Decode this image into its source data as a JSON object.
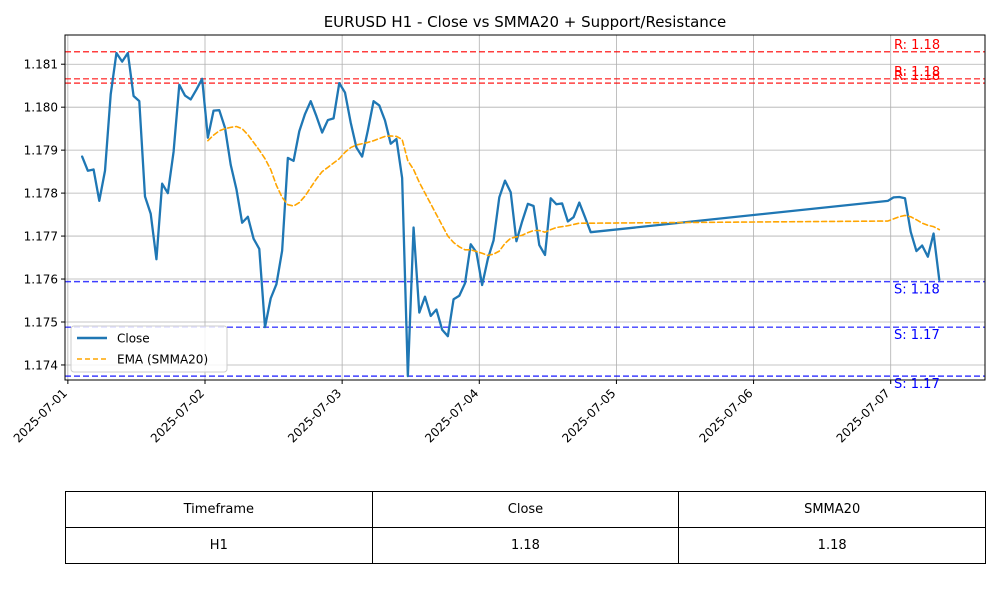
{
  "chart_data": {
    "type": "line",
    "title": "EURUSD H1 - Close vs SMMA20 + Support/Resistance",
    "xlabel": "",
    "ylabel": "",
    "x_ticks": [
      "2025-07-01",
      "2025-07-02",
      "2025-07-03",
      "2025-07-04",
      "2025-07-05",
      "2025-07-06",
      "2025-07-07"
    ],
    "x_range": [
      "2025-06-30T23:30",
      "2025-07-07T16:30"
    ],
    "y_ticks": [
      1.174,
      1.175,
      1.176,
      1.177,
      1.178,
      1.179,
      1.18,
      1.181
    ],
    "ylim": [
      1.17365,
      1.18168
    ],
    "grid": true,
    "legend": {
      "position": "lower-left",
      "entries": [
        "Close",
        "EMA (SMMA20)"
      ]
    },
    "series": [
      {
        "name": "Close",
        "color": "#1f77b4",
        "style": "solid",
        "points": [
          [
            "2025-07-01T02:30",
            1.17885
          ],
          [
            "2025-07-01T03:30",
            1.17852
          ],
          [
            "2025-07-01T04:30",
            1.17855
          ],
          [
            "2025-07-01T05:30",
            1.17782
          ],
          [
            "2025-07-01T06:30",
            1.17852
          ],
          [
            "2025-07-01T07:30",
            1.1803
          ],
          [
            "2025-07-01T08:30",
            1.18126
          ],
          [
            "2025-07-01T09:30",
            1.18106
          ],
          [
            "2025-07-01T10:30",
            1.18126
          ],
          [
            "2025-07-01T11:30",
            1.18026
          ],
          [
            "2025-07-01T12:30",
            1.18014
          ],
          [
            "2025-07-01T13:30",
            1.17792
          ],
          [
            "2025-07-01T14:30",
            1.17752
          ],
          [
            "2025-07-01T15:30",
            1.17646
          ],
          [
            "2025-07-01T16:30",
            1.17822
          ],
          [
            "2025-07-01T17:30",
            1.178
          ],
          [
            "2025-07-01T18:30",
            1.17896
          ],
          [
            "2025-07-01T19:30",
            1.18052
          ],
          [
            "2025-07-01T20:30",
            1.18027
          ],
          [
            "2025-07-01T21:30",
            1.18018
          ],
          [
            "2025-07-01T22:30",
            1.18041
          ],
          [
            "2025-07-01T23:30",
            1.18066
          ],
          [
            "2025-07-02T00:30",
            1.17929
          ],
          [
            "2025-07-02T01:30",
            1.17992
          ],
          [
            "2025-07-02T02:30",
            1.17993
          ],
          [
            "2025-07-02T03:30",
            1.17952
          ],
          [
            "2025-07-02T04:30",
            1.17866
          ],
          [
            "2025-07-02T05:30",
            1.17809
          ],
          [
            "2025-07-02T06:30",
            1.17731
          ],
          [
            "2025-07-02T07:30",
            1.17745
          ],
          [
            "2025-07-02T08:30",
            1.17694
          ],
          [
            "2025-07-02T09:30",
            1.1767
          ],
          [
            "2025-07-02T10:30",
            1.17488
          ],
          [
            "2025-07-02T11:30",
            1.17555
          ],
          [
            "2025-07-02T12:30",
            1.17588
          ],
          [
            "2025-07-02T13:30",
            1.17666
          ],
          [
            "2025-07-02T14:30",
            1.17882
          ],
          [
            "2025-07-02T15:30",
            1.17875
          ],
          [
            "2025-07-02T16:30",
            1.17944
          ],
          [
            "2025-07-02T17:30",
            1.17984
          ],
          [
            "2025-07-02T18:30",
            1.18014
          ],
          [
            "2025-07-02T19:30",
            1.17979
          ],
          [
            "2025-07-02T20:30",
            1.17941
          ],
          [
            "2025-07-02T21:30",
            1.1797
          ],
          [
            "2025-07-02T22:30",
            1.17974
          ],
          [
            "2025-07-02T23:30",
            1.18056
          ],
          [
            "2025-07-03T00:30",
            1.18034
          ],
          [
            "2025-07-03T01:30",
            1.17964
          ],
          [
            "2025-07-03T02:30",
            1.17906
          ],
          [
            "2025-07-03T03:30",
            1.17885
          ],
          [
            "2025-07-03T04:30",
            1.17946
          ],
          [
            "2025-07-03T05:30",
            1.18014
          ],
          [
            "2025-07-03T06:30",
            1.18004
          ],
          [
            "2025-07-03T07:30",
            1.17969
          ],
          [
            "2025-07-03T08:30",
            1.17915
          ],
          [
            "2025-07-03T09:30",
            1.17926
          ],
          [
            "2025-07-03T10:30",
            1.17835
          ],
          [
            "2025-07-03T11:30",
            1.17374
          ],
          [
            "2025-07-03T12:30",
            1.1772
          ],
          [
            "2025-07-03T13:30",
            1.17522
          ],
          [
            "2025-07-03T14:30",
            1.17559
          ],
          [
            "2025-07-03T15:30",
            1.17514
          ],
          [
            "2025-07-03T16:30",
            1.17529
          ],
          [
            "2025-07-03T17:30",
            1.17482
          ],
          [
            "2025-07-03T18:30",
            1.17467
          ],
          [
            "2025-07-03T19:30",
            1.17553
          ],
          [
            "2025-07-03T20:30",
            1.17561
          ],
          [
            "2025-07-03T21:30",
            1.1759
          ],
          [
            "2025-07-03T22:30",
            1.17681
          ],
          [
            "2025-07-03T23:30",
            1.17662
          ],
          [
            "2025-07-04T00:30",
            1.17586
          ],
          [
            "2025-07-04T01:30",
            1.17647
          ],
          [
            "2025-07-04T02:30",
            1.1769
          ],
          [
            "2025-07-04T03:30",
            1.1779
          ],
          [
            "2025-07-04T04:30",
            1.17829
          ],
          [
            "2025-07-04T05:30",
            1.17802
          ],
          [
            "2025-07-04T06:30",
            1.17688
          ],
          [
            "2025-07-04T07:30",
            1.17734
          ],
          [
            "2025-07-04T08:30",
            1.17775
          ],
          [
            "2025-07-04T09:30",
            1.1777
          ],
          [
            "2025-07-04T10:30",
            1.17679
          ],
          [
            "2025-07-04T11:30",
            1.17656
          ],
          [
            "2025-07-04T12:30",
            1.17788
          ],
          [
            "2025-07-04T13:30",
            1.17774
          ],
          [
            "2025-07-04T14:30",
            1.17776
          ],
          [
            "2025-07-04T15:30",
            1.17734
          ],
          [
            "2025-07-04T16:30",
            1.17744
          ],
          [
            "2025-07-04T17:30",
            1.17778
          ],
          [
            "2025-07-04T18:30",
            1.17744
          ],
          [
            "2025-07-04T19:30",
            1.17709
          ],
          [
            "2025-07-06T23:30",
            1.17782
          ],
          [
            "2025-07-07T00:30",
            1.1779
          ],
          [
            "2025-07-07T01:30",
            1.17791
          ],
          [
            "2025-07-07T02:30",
            1.17788
          ],
          [
            "2025-07-07T03:30",
            1.1771
          ],
          [
            "2025-07-07T04:30",
            1.17665
          ],
          [
            "2025-07-07T05:30",
            1.17678
          ],
          [
            "2025-07-07T06:30",
            1.17652
          ],
          [
            "2025-07-07T07:30",
            1.17706
          ],
          [
            "2025-07-07T08:30",
            1.17598
          ]
        ]
      },
      {
        "name": "EMA (SMMA20)",
        "color": "#ffa500",
        "style": "dashed",
        "points": [
          [
            "2025-07-02T00:30",
            1.17922
          ],
          [
            "2025-07-02T01:30",
            1.17935
          ],
          [
            "2025-07-02T02:30",
            1.17945
          ],
          [
            "2025-07-02T03:30",
            1.1795
          ],
          [
            "2025-07-02T04:30",
            1.17953
          ],
          [
            "2025-07-02T05:30",
            1.17955
          ],
          [
            "2025-07-02T06:30",
            1.1795
          ],
          [
            "2025-07-02T07:30",
            1.17936
          ],
          [
            "2025-07-02T08:30",
            1.17918
          ],
          [
            "2025-07-02T09:30",
            1.179
          ],
          [
            "2025-07-02T10:30",
            1.1788
          ],
          [
            "2025-07-02T11:30",
            1.17855
          ],
          [
            "2025-07-02T12:30",
            1.17818
          ],
          [
            "2025-07-02T13:30",
            1.1779
          ],
          [
            "2025-07-02T14:30",
            1.17773
          ],
          [
            "2025-07-02T15:30",
            1.1777
          ],
          [
            "2025-07-02T16:30",
            1.17778
          ],
          [
            "2025-07-02T17:30",
            1.17793
          ],
          [
            "2025-07-02T18:30",
            1.17813
          ],
          [
            "2025-07-02T19:30",
            1.17833
          ],
          [
            "2025-07-02T20:30",
            1.1785
          ],
          [
            "2025-07-02T21:30",
            1.1786
          ],
          [
            "2025-07-02T22:30",
            1.1787
          ],
          [
            "2025-07-02T23:30",
            1.1788
          ],
          [
            "2025-07-03T00:30",
            1.17895
          ],
          [
            "2025-07-03T01:30",
            1.17906
          ],
          [
            "2025-07-03T02:30",
            1.17912
          ],
          [
            "2025-07-03T03:30",
            1.17915
          ],
          [
            "2025-07-03T04:30",
            1.17918
          ],
          [
            "2025-07-03T05:30",
            1.17922
          ],
          [
            "2025-07-03T06:30",
            1.17927
          ],
          [
            "2025-07-03T07:30",
            1.17932
          ],
          [
            "2025-07-03T08:30",
            1.17933
          ],
          [
            "2025-07-03T09:30",
            1.17932
          ],
          [
            "2025-07-03T10:30",
            1.17925
          ],
          [
            "2025-07-03T11:30",
            1.17875
          ],
          [
            "2025-07-03T12:30",
            1.17855
          ],
          [
            "2025-07-03T13:30",
            1.17825
          ],
          [
            "2025-07-03T14:30",
            1.178
          ],
          [
            "2025-07-03T15:30",
            1.17775
          ],
          [
            "2025-07-03T16:30",
            1.1775
          ],
          [
            "2025-07-03T17:30",
            1.17725
          ],
          [
            "2025-07-03T18:30",
            1.177
          ],
          [
            "2025-07-03T19:30",
            1.17685
          ],
          [
            "2025-07-03T20:30",
            1.17675
          ],
          [
            "2025-07-03T21:30",
            1.17668
          ],
          [
            "2025-07-03T22:30",
            1.17668
          ],
          [
            "2025-07-03T23:30",
            1.17664
          ],
          [
            "2025-07-04T00:30",
            1.1766
          ],
          [
            "2025-07-04T01:30",
            1.17655
          ],
          [
            "2025-07-04T02:30",
            1.17658
          ],
          [
            "2025-07-04T03:30",
            1.17665
          ],
          [
            "2025-07-04T04:30",
            1.17683
          ],
          [
            "2025-07-04T05:30",
            1.17695
          ],
          [
            "2025-07-04T06:30",
            1.17698
          ],
          [
            "2025-07-04T07:30",
            1.17702
          ],
          [
            "2025-07-04T08:30",
            1.17708
          ],
          [
            "2025-07-04T09:30",
            1.17713
          ],
          [
            "2025-07-04T10:30",
            1.17713
          ],
          [
            "2025-07-04T11:30",
            1.17709
          ],
          [
            "2025-07-04T12:30",
            1.17715
          ],
          [
            "2025-07-04T13:30",
            1.1772
          ],
          [
            "2025-07-04T14:30",
            1.17722
          ],
          [
            "2025-07-04T15:30",
            1.17724
          ],
          [
            "2025-07-04T16:30",
            1.17727
          ],
          [
            "2025-07-04T17:30",
            1.1773
          ],
          [
            "2025-07-04T18:30",
            1.1773
          ],
          [
            "2025-07-04T19:30",
            1.1773
          ],
          [
            "2025-07-06T23:30",
            1.17735
          ],
          [
            "2025-07-07T00:30",
            1.1774
          ],
          [
            "2025-07-07T01:30",
            1.17745
          ],
          [
            "2025-07-07T02:30",
            1.17748
          ],
          [
            "2025-07-07T03:30",
            1.17745
          ],
          [
            "2025-07-07T04:30",
            1.17738
          ],
          [
            "2025-07-07T05:30",
            1.1773
          ],
          [
            "2025-07-07T06:30",
            1.17725
          ],
          [
            "2025-07-07T07:30",
            1.17722
          ],
          [
            "2025-07-07T08:30",
            1.17715
          ]
        ]
      }
    ],
    "resistance_lines": [
      {
        "value": 1.18129,
        "label": "R: 1.18",
        "color": "#ff0000"
      },
      {
        "value": 1.18066,
        "label": "R: 1.18",
        "color": "#ff0000"
      },
      {
        "value": 1.18056,
        "label": "R: 1.18",
        "color": "#ff0000"
      }
    ],
    "support_lines": [
      {
        "value": 1.17594,
        "label": "S: 1.18",
        "color": "#0000ff"
      },
      {
        "value": 1.17488,
        "label": "S: 1.17",
        "color": "#0000ff"
      },
      {
        "value": 1.17374,
        "label": "S: 1.17",
        "color": "#0000ff"
      }
    ]
  },
  "summary_table": {
    "headers": [
      "Timeframe",
      "Close",
      "SMMA20"
    ],
    "row": [
      "H1",
      "1.18",
      "1.18"
    ]
  }
}
